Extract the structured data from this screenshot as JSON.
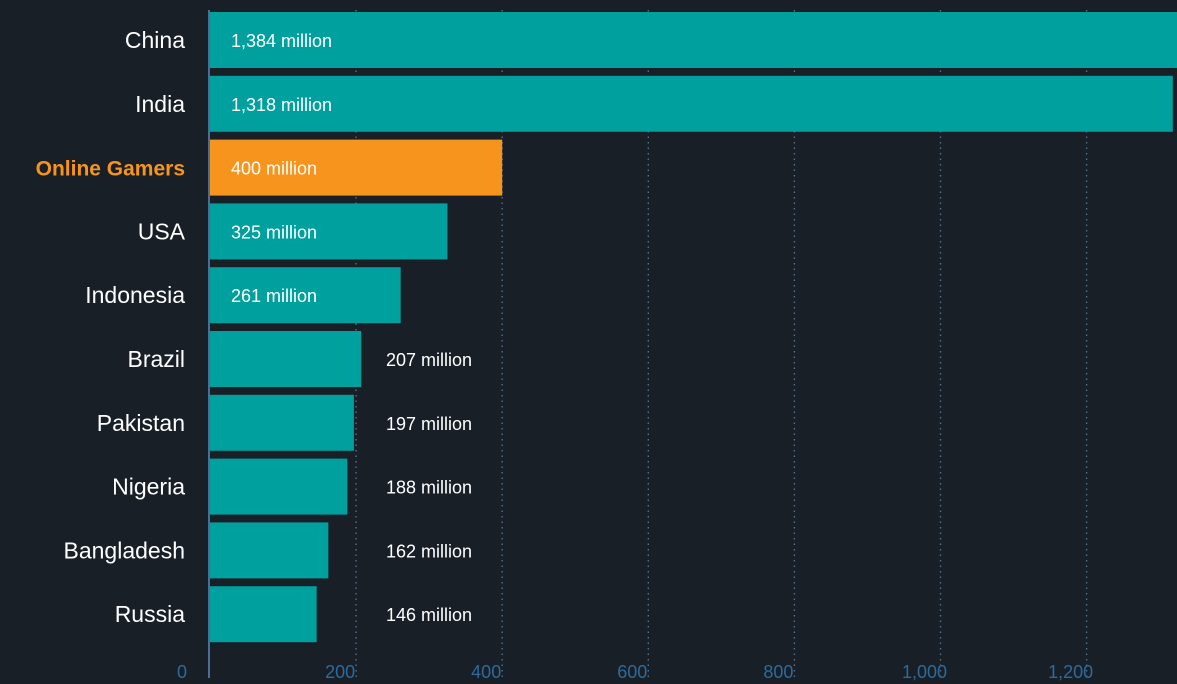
{
  "colors": {
    "background": "#181f27",
    "bar": "#00a09e",
    "highlight": "#f7941d",
    "label_text": "#ffffff",
    "tick_text": "#2f6a9a",
    "grid": "#4f6f8f",
    "axis": "#4a6e96"
  },
  "chart_data": {
    "type": "bar",
    "orientation": "horizontal",
    "title": "",
    "xlabel": "",
    "ylabel": "",
    "xlim": [
      0,
      1320
    ],
    "ticks": [
      0,
      200,
      400,
      600,
      800,
      1000,
      1200
    ],
    "tick_labels": [
      "0",
      "200",
      "400",
      "600",
      "800",
      "1,000",
      "1,200"
    ],
    "grid": true,
    "categories": [
      "China",
      "India",
      "Online Gamers",
      "USA",
      "Indonesia",
      "Brazil",
      "Pakistan",
      "Nigeria",
      "Bangladesh",
      "Russia"
    ],
    "values": [
      1384,
      1318,
      400,
      325,
      261,
      207,
      197,
      188,
      162,
      146
    ],
    "value_labels": [
      "1,384 million",
      "1,318 million",
      "400 million",
      "325 million",
      "261 million",
      "207 million",
      "197 million",
      "188 million",
      "162 million",
      "146 million"
    ],
    "highlight_category": "Online Gamers"
  }
}
